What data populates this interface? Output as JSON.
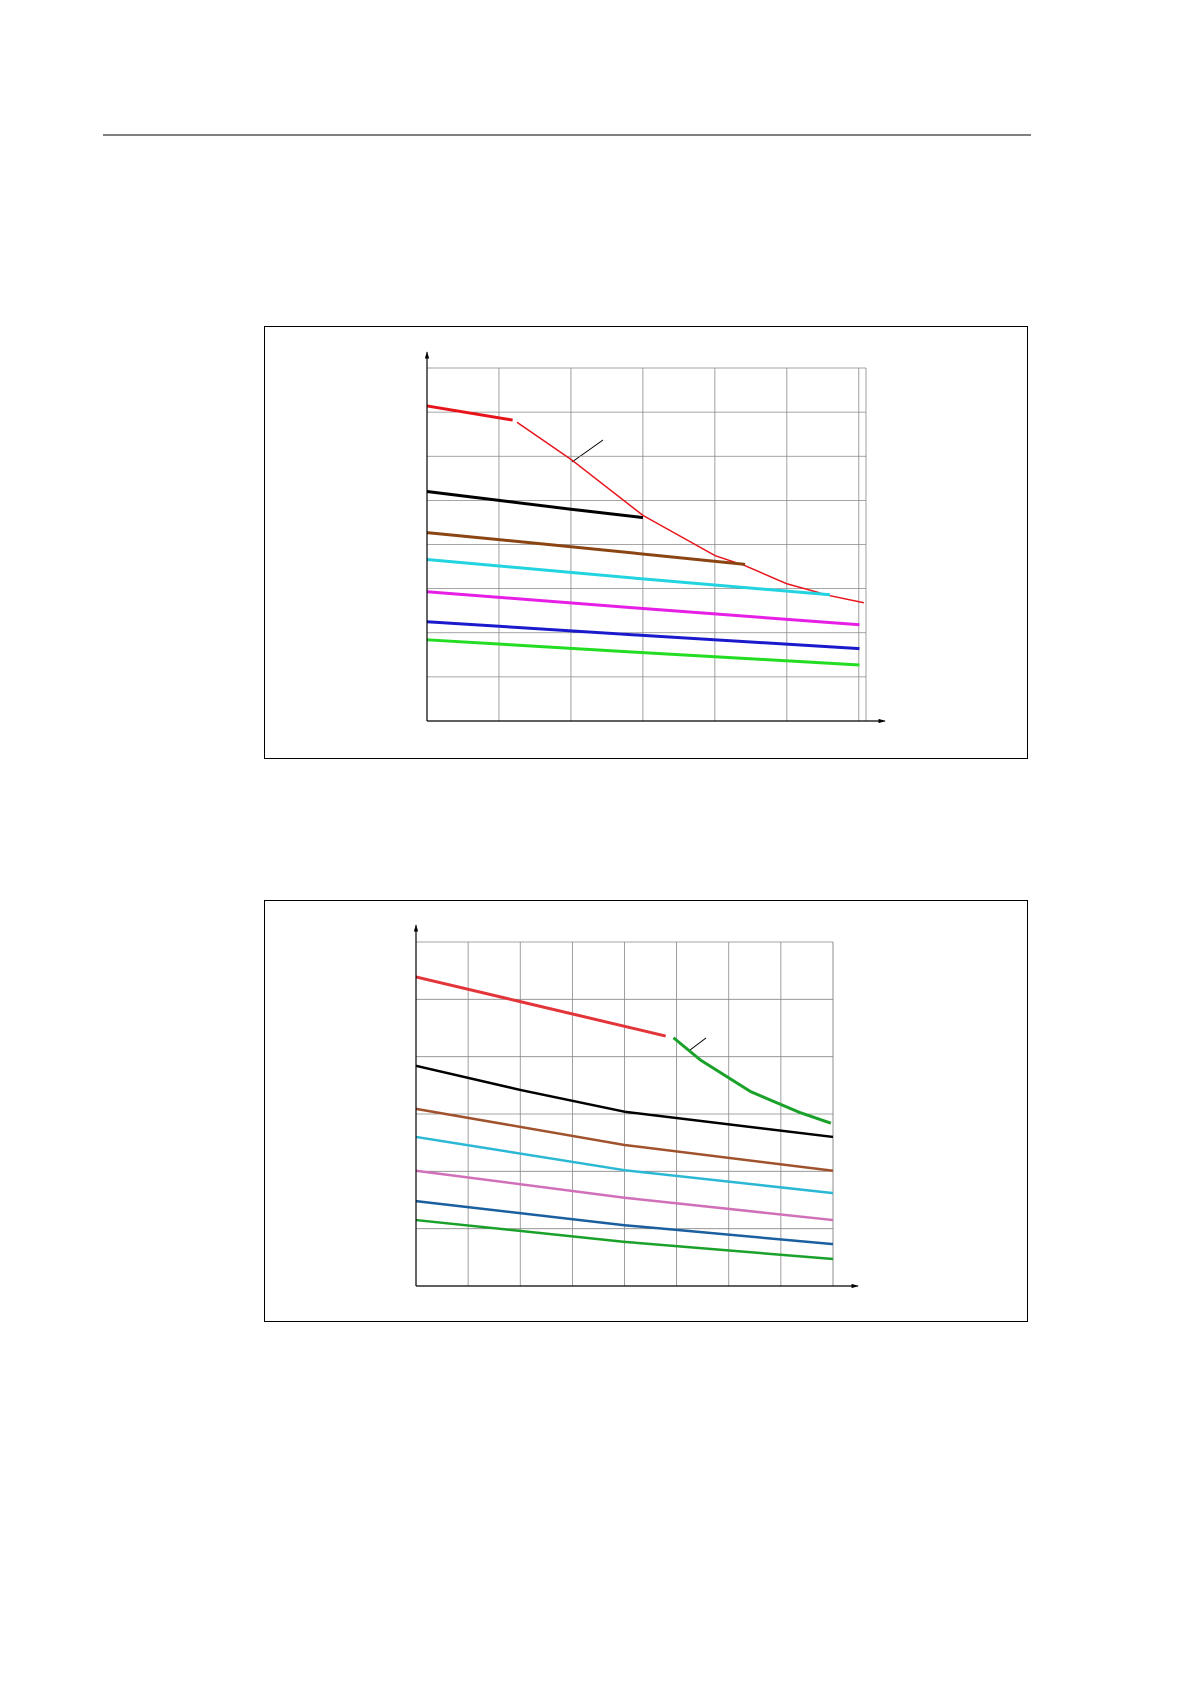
{
  "chart_data": [
    {
      "type": "line",
      "grid": true,
      "tick_labels": false,
      "xlim": [
        0,
        6.1
      ],
      "ylim": [
        0,
        8
      ],
      "xticks": [
        0,
        1,
        2,
        3,
        4,
        5,
        6
      ],
      "yticks": [
        0,
        1,
        2,
        3,
        4,
        5,
        6,
        7,
        8
      ],
      "series": [
        {
          "color": "#e8141c",
          "width": 3,
          "x": [
            0,
            1.19
          ],
          "values": [
            7.14,
            6.82
          ]
        },
        {
          "color": "#e8141c",
          "width": 1.5,
          "x": [
            1.25,
            2,
            3,
            4,
            4.42,
            5,
            5.6,
            6.07
          ],
          "values": [
            6.77,
            5.93,
            4.66,
            3.75,
            3.52,
            3.11,
            2.84,
            2.68
          ]
        },
        {
          "color": "#000000",
          "width": 3,
          "x": [
            0,
            1,
            2,
            3
          ],
          "values": [
            5.2,
            5.0,
            4.8,
            4.61
          ]
        },
        {
          "color": "#8b4513",
          "width": 3,
          "x": [
            0,
            2,
            4.42
          ],
          "values": [
            4.27,
            3.95,
            3.55
          ]
        },
        {
          "color": "#22d3e0",
          "width": 3,
          "x": [
            0,
            3,
            5.6
          ],
          "values": [
            3.66,
            3.22,
            2.86
          ]
        },
        {
          "color": "#e61ee6",
          "width": 3,
          "x": [
            0,
            3,
            6.01
          ],
          "values": [
            2.93,
            2.55,
            2.18
          ]
        },
        {
          "color": "#1a1acc",
          "width": 3,
          "x": [
            0,
            3,
            6.01
          ],
          "values": [
            2.25,
            1.94,
            1.64
          ]
        },
        {
          "color": "#22dd22",
          "width": 3,
          "x": [
            0,
            3,
            6.01
          ],
          "values": [
            1.84,
            1.55,
            1.27
          ]
        }
      ]
    },
    {
      "type": "line",
      "grid": true,
      "tick_labels": false,
      "xlim": [
        0,
        8
      ],
      "ylim": [
        0,
        6
      ],
      "xticks": [
        0,
        1,
        2,
        3,
        4,
        5,
        6,
        7,
        8
      ],
      "yticks": [
        0,
        1,
        2,
        3,
        4,
        5,
        6
      ],
      "series": [
        {
          "color": "#e3343a",
          "width": 3,
          "x": [
            0,
            2,
            4,
            4.79
          ],
          "values": [
            5.39,
            4.96,
            4.53,
            4.36
          ]
        },
        {
          "color": "#1aa12a",
          "width": 3,
          "x": [
            4.94,
            5.46,
            6.42,
            7.38,
            7.96
          ],
          "values": [
            4.33,
            3.94,
            3.39,
            3.02,
            2.84
          ]
        },
        {
          "color": "#000000",
          "width": 2.5,
          "x": [
            0,
            2,
            4,
            8
          ],
          "values": [
            3.84,
            3.42,
            3.04,
            2.6
          ]
        },
        {
          "color": "#a0522d",
          "width": 2.5,
          "x": [
            0,
            4,
            8
          ],
          "values": [
            3.09,
            2.46,
            2.01
          ]
        },
        {
          "color": "#2ab8d4",
          "width": 2.5,
          "x": [
            0,
            4,
            8
          ],
          "values": [
            2.6,
            2.02,
            1.62
          ]
        },
        {
          "color": "#d070b8",
          "width": 2.5,
          "x": [
            0,
            4,
            8
          ],
          "values": [
            2.01,
            1.54,
            1.15
          ]
        },
        {
          "color": "#1a5fa0",
          "width": 2.5,
          "x": [
            0,
            4,
            8
          ],
          "values": [
            1.48,
            1.06,
            0.73
          ]
        },
        {
          "color": "#1aa12a",
          "width": 2.5,
          "x": [
            0,
            4,
            8
          ],
          "values": [
            1.15,
            0.77,
            0.47
          ]
        }
      ]
    }
  ]
}
